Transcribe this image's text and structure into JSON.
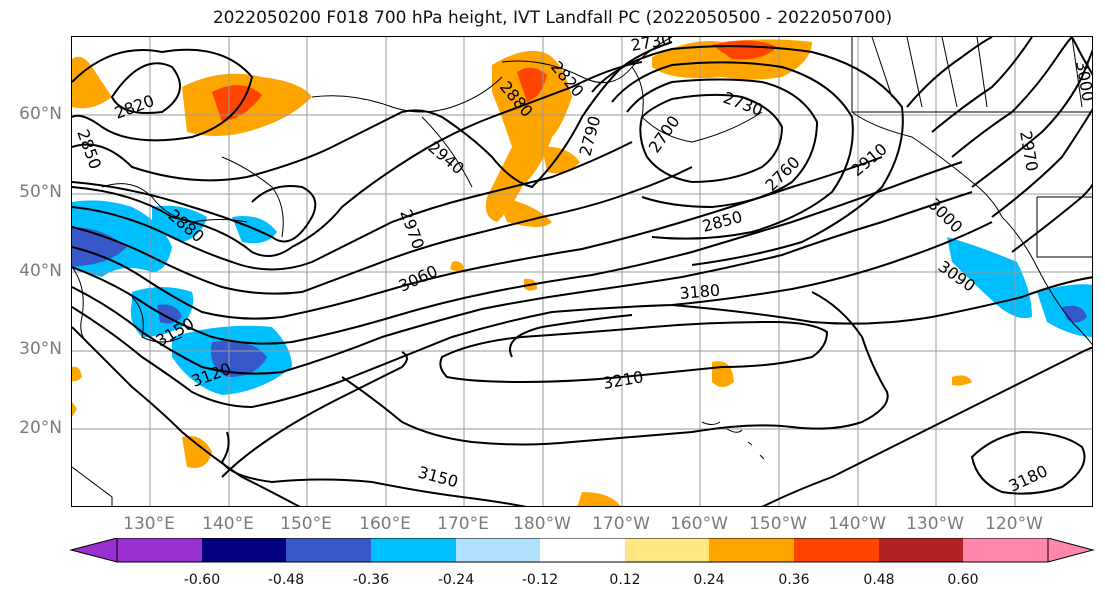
{
  "title": "2022050200 F018 700 hPa height, IVT Landfall PC (2022050500 - 2022050700)",
  "latitude_labels": [
    "60°N",
    "50°N",
    "40°N",
    "30°N",
    "20°N"
  ],
  "longitude_labels": [
    "130°E",
    "140°E",
    "150°E",
    "160°E",
    "170°E",
    "180°W",
    "170°W",
    "160°W",
    "150°W",
    "140°W",
    "130°W",
    "120°W"
  ],
  "contour_labels": [
    "2820",
    "2850",
    "2880",
    "2820",
    "2880",
    "2790",
    "2730",
    "2730",
    "2700",
    "2760",
    "2910",
    "2940",
    "2970",
    "2850",
    "3000",
    "3060",
    "3180",
    "3090",
    "3120",
    "3210",
    "3150",
    "3180",
    "2970",
    "3000",
    "3150"
  ],
  "colorbar": {
    "tick_labels": [
      "-0.60",
      "-0.48",
      "-0.36",
      "-0.24",
      "-0.12",
      "0.12",
      "0.24",
      "0.36",
      "0.48",
      "0.60"
    ],
    "colors": [
      "#9b30d0",
      "#000080",
      "#3658c8",
      "#00bfff",
      "#b0e2ff",
      "#ffffff",
      "#ffe680",
      "#ffa500",
      "#ff4500",
      "#b22222",
      "#ff88aa",
      "#ff88aa"
    ]
  },
  "palette": {
    "height_contour": "#000000",
    "graticule": "#9a9a9a",
    "axis_labels": "#7a7a7a",
    "positive_low": "#ffa500",
    "positive_mid": "#ff4500",
    "negative_low": "#00bfff",
    "negative_mid": "#3658c8"
  }
}
